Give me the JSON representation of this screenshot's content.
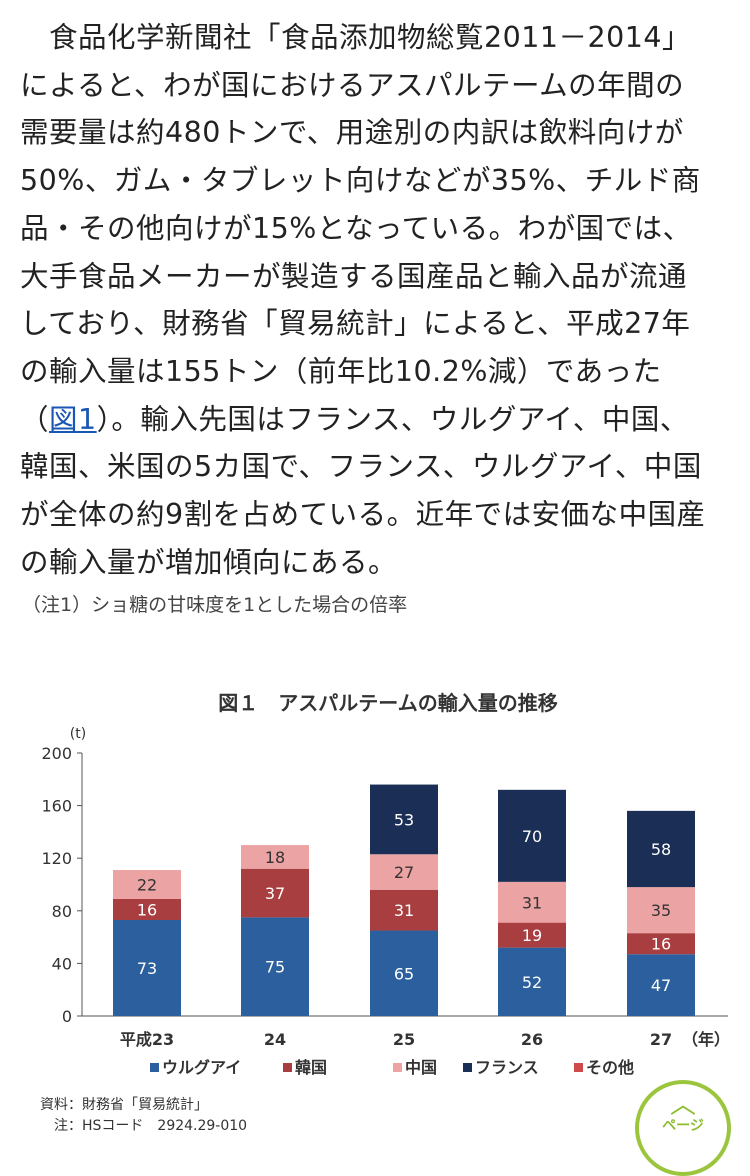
{
  "article": {
    "lines": [
      "　食品化学新聞社「食品添加物総覧2011－2014」",
      "によると、わが国におけるアスパルテームの年間の",
      "需要量は約480トンで、用途別の内訳は飲料向けが",
      "50%、ガム・タブレット向けなどが35%、チルド商",
      "品・その他向けが15%となっている。わが国では、",
      "大手食品メーカーが製造する国産品と輸入品が流通",
      "しており、財務省「貿易統計」によると、平成27年",
      "の輸入量は155トン（前年比10.2%減）であった"
    ],
    "line9_open": "（",
    "line9_link": "図1",
    "line9_rest": "）。輸入先国はフランス、ウルグアイ、中国、",
    "lines_after": [
      "韓国、米国の5カ国で、フランス、ウルグアイ、中国",
      "が全体の約9割を占めている。近年では安価な中国産",
      "の輸入量が増加傾向にある。"
    ]
  },
  "footnote": "（注1）ショ糖の甘味度を1とした場合の倍率",
  "chart_data": {
    "type": "bar",
    "stacked": true,
    "title": "図１　アスパルテームの輸入量の推移",
    "ylabel": "(t)",
    "xunit": "（年）",
    "categories": [
      "平成23",
      "24",
      "25",
      "26",
      "27"
    ],
    "ylim": [
      0,
      200
    ],
    "yticks": [
      0,
      40,
      80,
      120,
      160,
      200
    ],
    "grid": false,
    "legend_position": "bottom",
    "series": [
      {
        "name": "ウルグアイ",
        "color": "#2c5f9e",
        "values": [
          73,
          75,
          65,
          52,
          47
        ]
      },
      {
        "name": "韓国",
        "color": "#a93e40",
        "values": [
          16,
          37,
          31,
          19,
          16
        ]
      },
      {
        "name": "中国",
        "color": "#eba3a3",
        "values": [
          22,
          18,
          27,
          31,
          35
        ]
      },
      {
        "name": "フランス",
        "color": "#1b2e55",
        "values": [
          0,
          0,
          53,
          70,
          58
        ]
      },
      {
        "name": "その他",
        "color": "#cf4a4c",
        "values": [
          0,
          0,
          0,
          0,
          0
        ]
      }
    ]
  },
  "source": {
    "line1": "資料：財務省「貿易統計」",
    "line2": "　注：HSコード　2924.29-010"
  },
  "page_button": {
    "icon": "chevron-up-icon",
    "label": "ページ"
  }
}
